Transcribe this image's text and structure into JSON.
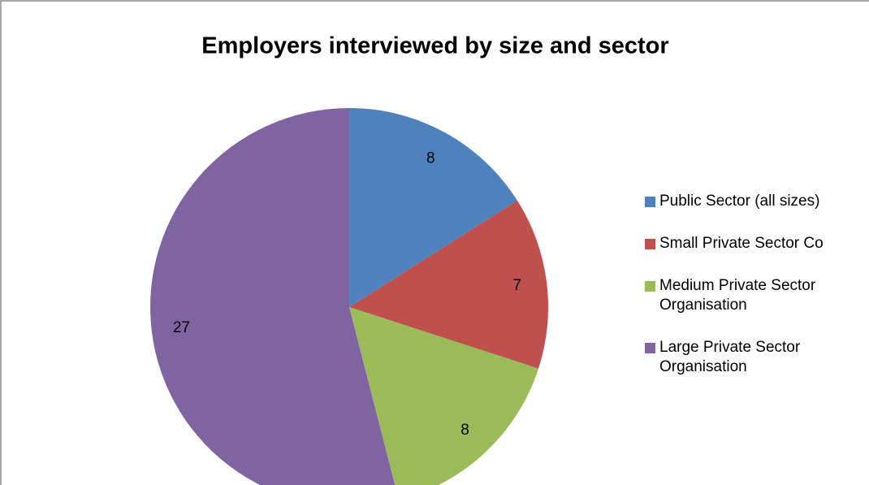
{
  "chart_data": {
    "type": "pie",
    "title": "Employers interviewed by size and sector",
    "categories": [
      "Public Sector (all sizes)",
      "Small Private Sector Co",
      "Medium Private Sector Organisation",
      "Large Private Sector Organisation"
    ],
    "values": [
      8,
      7,
      8,
      27
    ],
    "colors": [
      "#4f81bd",
      "#c0504d",
      "#9bbb59",
      "#8064a2"
    ],
    "legend": "right"
  }
}
